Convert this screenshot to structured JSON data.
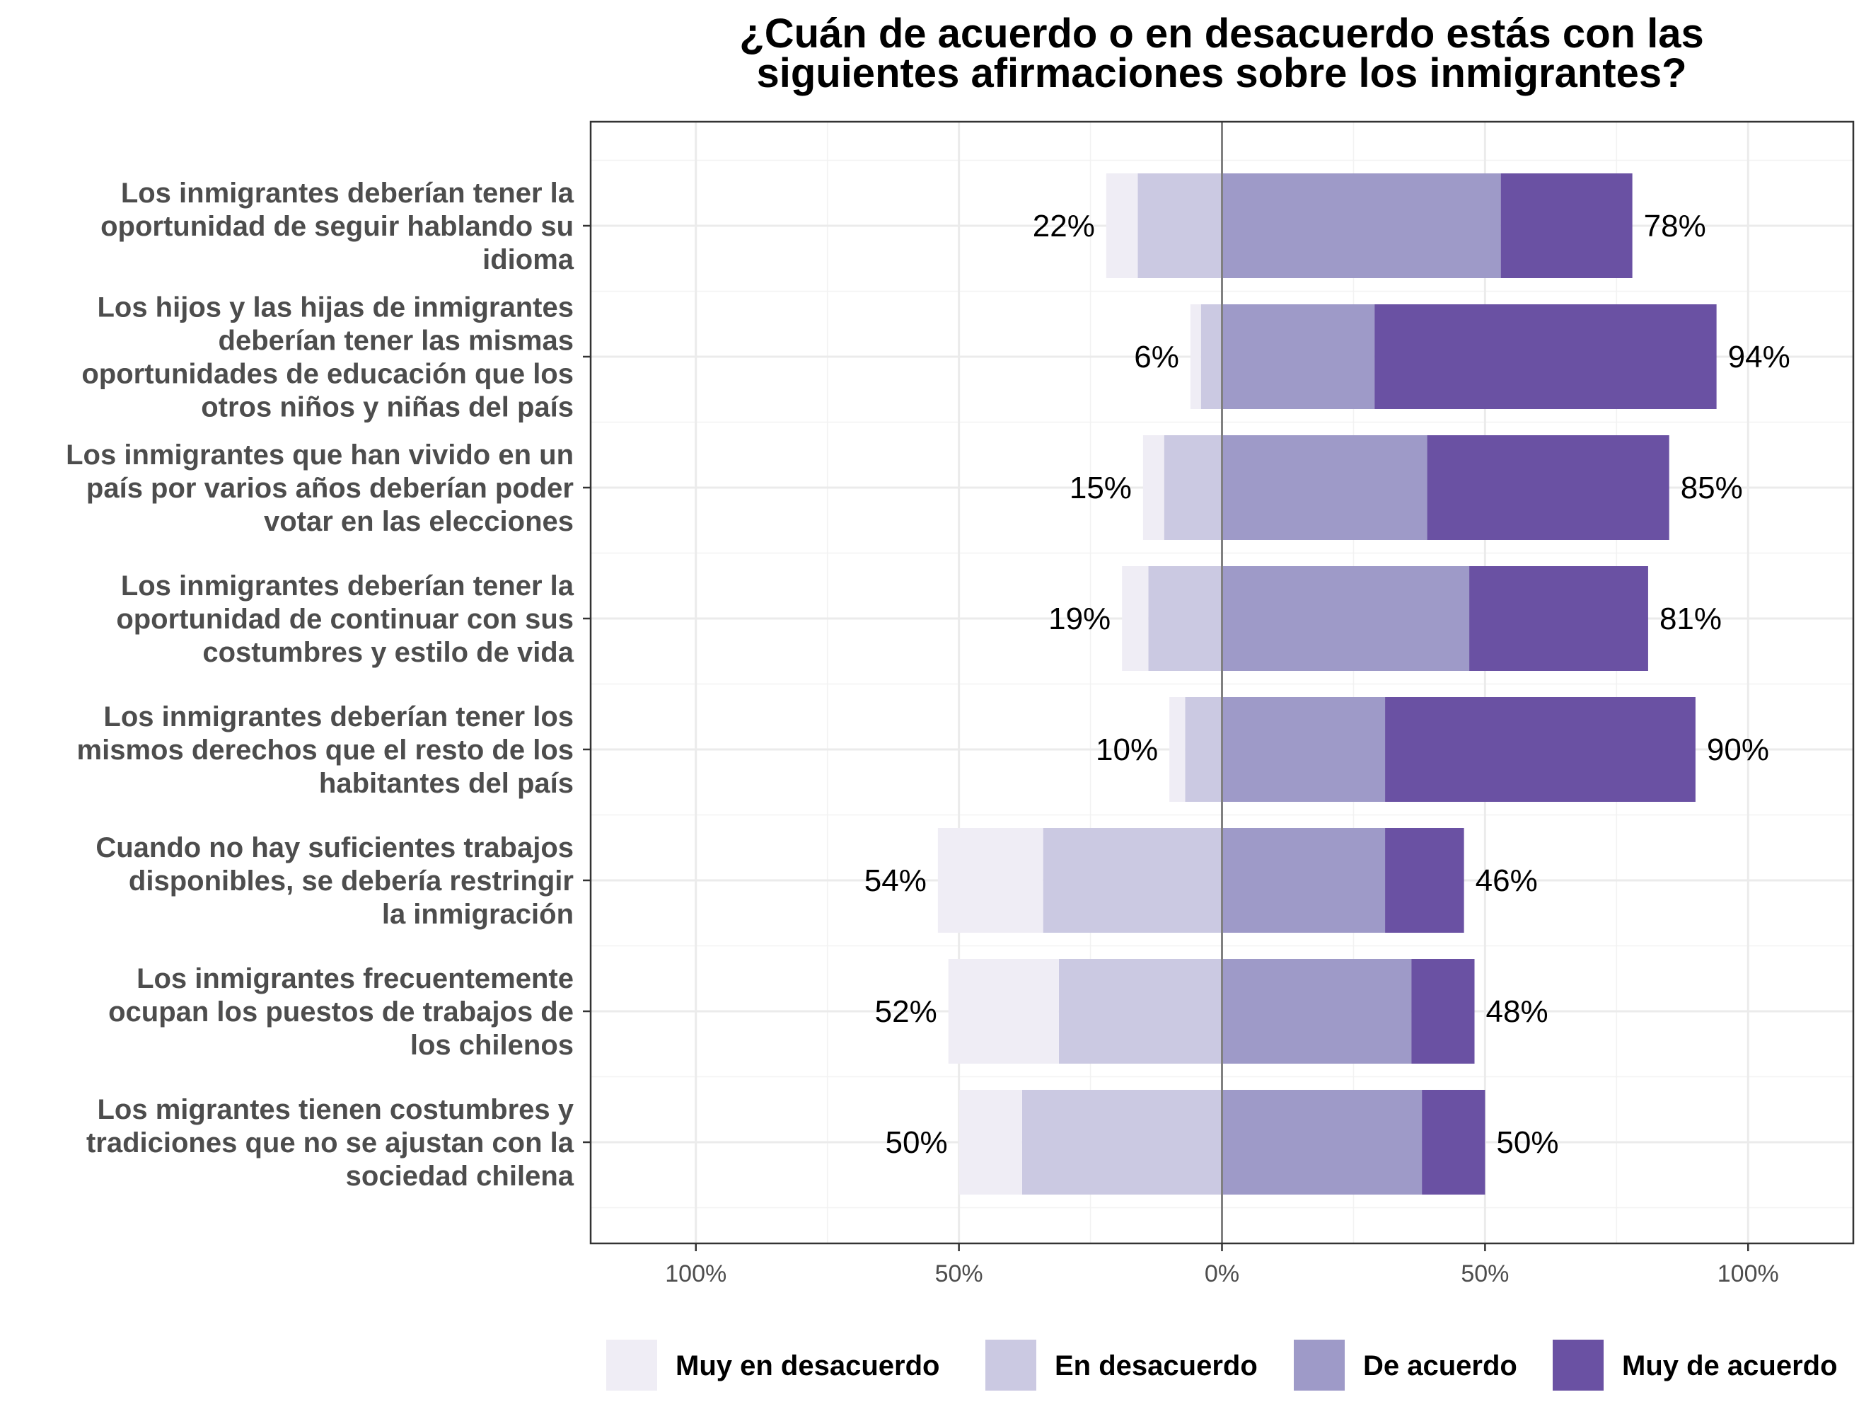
{
  "chart_data": {
    "type": "bar",
    "orientation": "horizontal",
    "stacking": "diverging",
    "title": [
      "¿Cuán de acuerdo o en desacuerdo estás con las",
      "siguientes afirmaciones sobre los inmigrantes?"
    ],
    "xlim": [
      -1.2,
      1.2
    ],
    "x_ticks": [
      {
        "value": -1.0,
        "label": "100%"
      },
      {
        "value": -0.5,
        "label": "50%"
      },
      {
        "value": 0.0,
        "label": "0%"
      },
      {
        "value": 0.5,
        "label": "50%"
      },
      {
        "value": 1.0,
        "label": "100%"
      }
    ],
    "grid": true,
    "legend_position": "bottom",
    "series": [
      {
        "name": "Muy en desacuerdo",
        "color": "#efedf5",
        "side": "negative"
      },
      {
        "name": "En desacuerdo",
        "color": "#cbc9e2",
        "side": "negative"
      },
      {
        "name": "De acuerdo",
        "color": "#9e9ac8",
        "side": "positive"
      },
      {
        "name": "Muy de acuerdo",
        "color": "#6a51a3",
        "side": "positive"
      }
    ],
    "categories": [
      {
        "lines": [
          "Los inmigrantes deberían tener la",
          "oportunidad de seguir hablando su",
          "idioma"
        ],
        "values": {
          "Muy en desacuerdo": 0.06,
          "En desacuerdo": 0.16,
          "De acuerdo": 0.53,
          "Muy de acuerdo": 0.25
        },
        "disagree_label": "22%",
        "agree_label": "78%"
      },
      {
        "lines": [
          "Los hijos y las hijas de inmigrantes",
          "deberían tener las mismas",
          "oportunidades de educación que los",
          "otros niños y niñas del país"
        ],
        "values": {
          "Muy en desacuerdo": 0.02,
          "En desacuerdo": 0.04,
          "De acuerdo": 0.29,
          "Muy de acuerdo": 0.65
        },
        "disagree_label": "6%",
        "agree_label": "94%"
      },
      {
        "lines": [
          "Los inmigrantes que han vivido en un",
          "país por varios años deberían poder",
          "votar en las elecciones"
        ],
        "values": {
          "Muy en desacuerdo": 0.04,
          "En desacuerdo": 0.11,
          "De acuerdo": 0.39,
          "Muy de acuerdo": 0.46
        },
        "disagree_label": "15%",
        "agree_label": "85%"
      },
      {
        "lines": [
          "Los inmigrantes deberían tener la",
          "oportunidad de continuar con sus",
          "costumbres y estilo de vida"
        ],
        "values": {
          "Muy en desacuerdo": 0.05,
          "En desacuerdo": 0.14,
          "De acuerdo": 0.47,
          "Muy de acuerdo": 0.34
        },
        "disagree_label": "19%",
        "agree_label": "81%"
      },
      {
        "lines": [
          "Los inmigrantes deberían tener los",
          "mismos derechos que el resto de los",
          "habitantes del país"
        ],
        "values": {
          "Muy en desacuerdo": 0.03,
          "En desacuerdo": 0.07,
          "De acuerdo": 0.31,
          "Muy de acuerdo": 0.59
        },
        "disagree_label": "10%",
        "agree_label": "90%"
      },
      {
        "lines": [
          "Cuando no hay suficientes trabajos",
          "disponibles, se debería restringir",
          "la inmigración"
        ],
        "values": {
          "Muy en desacuerdo": 0.2,
          "En desacuerdo": 0.34,
          "De acuerdo": 0.31,
          "Muy de acuerdo": 0.15
        },
        "disagree_label": "54%",
        "agree_label": "46%"
      },
      {
        "lines": [
          "Los inmigrantes frecuentemente",
          "ocupan los puestos de trabajos de",
          "los chilenos"
        ],
        "values": {
          "Muy en desacuerdo": 0.21,
          "En desacuerdo": 0.31,
          "De acuerdo": 0.36,
          "Muy de acuerdo": 0.12
        },
        "disagree_label": "52%",
        "agree_label": "48%"
      },
      {
        "lines": [
          "Los migrantes tienen costumbres y",
          "tradiciones que no se ajustan con la",
          "sociedad chilena"
        ],
        "values": {
          "Muy en desacuerdo": 0.12,
          "En desacuerdo": 0.38,
          "De acuerdo": 0.38,
          "Muy de acuerdo": 0.12
        },
        "disagree_label": "50%",
        "agree_label": "50%"
      }
    ]
  }
}
